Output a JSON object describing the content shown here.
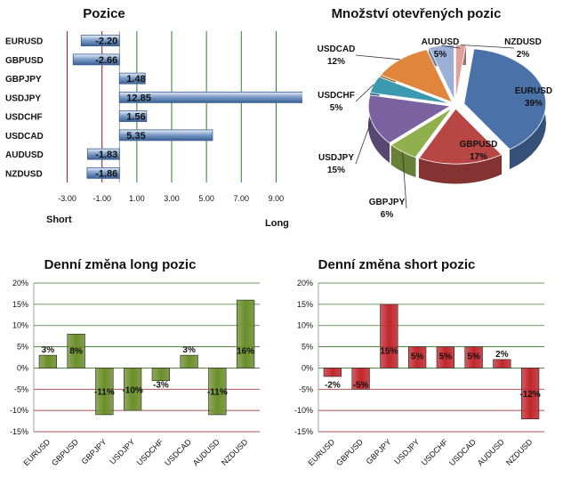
{
  "chart_data": [
    {
      "type": "bar",
      "orientation": "horizontal",
      "title": "Pozice",
      "categories": [
        "EURUSD",
        "GBPUSD",
        "GBPJPY",
        "USDJPY",
        "USDCHF",
        "USDCAD",
        "AUDUSD",
        "NZDUSD"
      ],
      "values": [
        -2.2,
        -2.66,
        1.48,
        12.85,
        1.56,
        5.35,
        -1.83,
        -1.86
      ],
      "value_labels": [
        "-2.20",
        "-2.66",
        "1.48",
        "12.85",
        "1.56",
        "5.35",
        "-1.83",
        "-1.86"
      ],
      "xlim": [
        -4,
        10
      ],
      "ticks": [
        -3,
        -1,
        1,
        3,
        5,
        7,
        9
      ],
      "tick_labels": [
        "-3.00",
        "-1.00",
        "1.00",
        "3.00",
        "5.00",
        "7.00",
        "9.00"
      ],
      "gridline_colors": [
        "#8b1a1a",
        "#8b1a1a",
        "#2e7d32",
        "#2e7d32",
        "#2e7d32",
        "#2e7d32",
        "#2e7d32"
      ],
      "short_label": "Short",
      "long_label": "Long",
      "bar_color": "#7f9fca"
    },
    {
      "type": "pie",
      "title": "Množství otevřených pozic",
      "slices": [
        {
          "name": "EURUSD",
          "value": 39,
          "label": "39%",
          "color": "#4a71a8"
        },
        {
          "name": "GBPUSD",
          "value": 17,
          "label": "17%",
          "color": "#b84645"
        },
        {
          "name": "GBPJPY",
          "value": 6,
          "label": "6%",
          "color": "#8fb04c"
        },
        {
          "name": "USDJPY",
          "value": 15,
          "label": "15%",
          "color": "#7b62a0"
        },
        {
          "name": "USDCHF",
          "value": 5,
          "label": "5%",
          "color": "#3b9ab0"
        },
        {
          "name": "USDCAD",
          "value": 12,
          "label": "12%",
          "color": "#e0863c"
        },
        {
          "name": "AUDUSD",
          "value": 5,
          "label": "5%",
          "color": "#9bb0d6"
        },
        {
          "name": "NZDUSD",
          "value": 2,
          "label": "2%",
          "color": "#e0a09c"
        }
      ]
    },
    {
      "type": "bar",
      "title": "Denní změna long pozic",
      "categories": [
        "EURUSD",
        "GBPUSD",
        "GBPJPY",
        "USDJPY",
        "USDCHF",
        "USDCAD",
        "AUDUSD",
        "NZDUSD"
      ],
      "values": [
        3,
        8,
        -11,
        -10,
        -3,
        3,
        -11,
        16
      ],
      "value_labels": [
        "3%",
        "8%",
        "-11%",
        "-10%",
        "-3%",
        "3%",
        "-11%",
        "16%"
      ],
      "ylim": [
        -15,
        20
      ],
      "yticks": [
        "-15%",
        "-10%",
        "-5%",
        "0%",
        "5%",
        "10%",
        "15%",
        "20%"
      ],
      "ytick_values": [
        -15,
        -10,
        -5,
        0,
        5,
        10,
        15,
        20
      ],
      "bar_color": "#6b8e2a",
      "grid_color": "#3a7d2a"
    },
    {
      "type": "bar",
      "title": "Denní změna short pozic",
      "categories": [
        "EURUSD",
        "GBPUSD",
        "GBPJPY",
        "USDJPY",
        "USDCHF",
        "USDCAD",
        "AUDUSD",
        "NZDUSD"
      ],
      "values": [
        -2,
        -5,
        15,
        5,
        5,
        5,
        2,
        -12
      ],
      "value_labels": [
        "-2%",
        "-5%",
        "15%",
        "5%",
        "5%",
        "5%",
        "2%",
        "-12%"
      ],
      "ylim": [
        -15,
        20
      ],
      "yticks": [
        "-15%",
        "-10%",
        "-5%",
        "0%",
        "5%",
        "10%",
        "15%",
        "20%"
      ],
      "ytick_values": [
        -15,
        -10,
        -5,
        0,
        5,
        10,
        15,
        20
      ],
      "bar_color": "#c0272d",
      "grid_color": "#3a7d2a"
    }
  ]
}
